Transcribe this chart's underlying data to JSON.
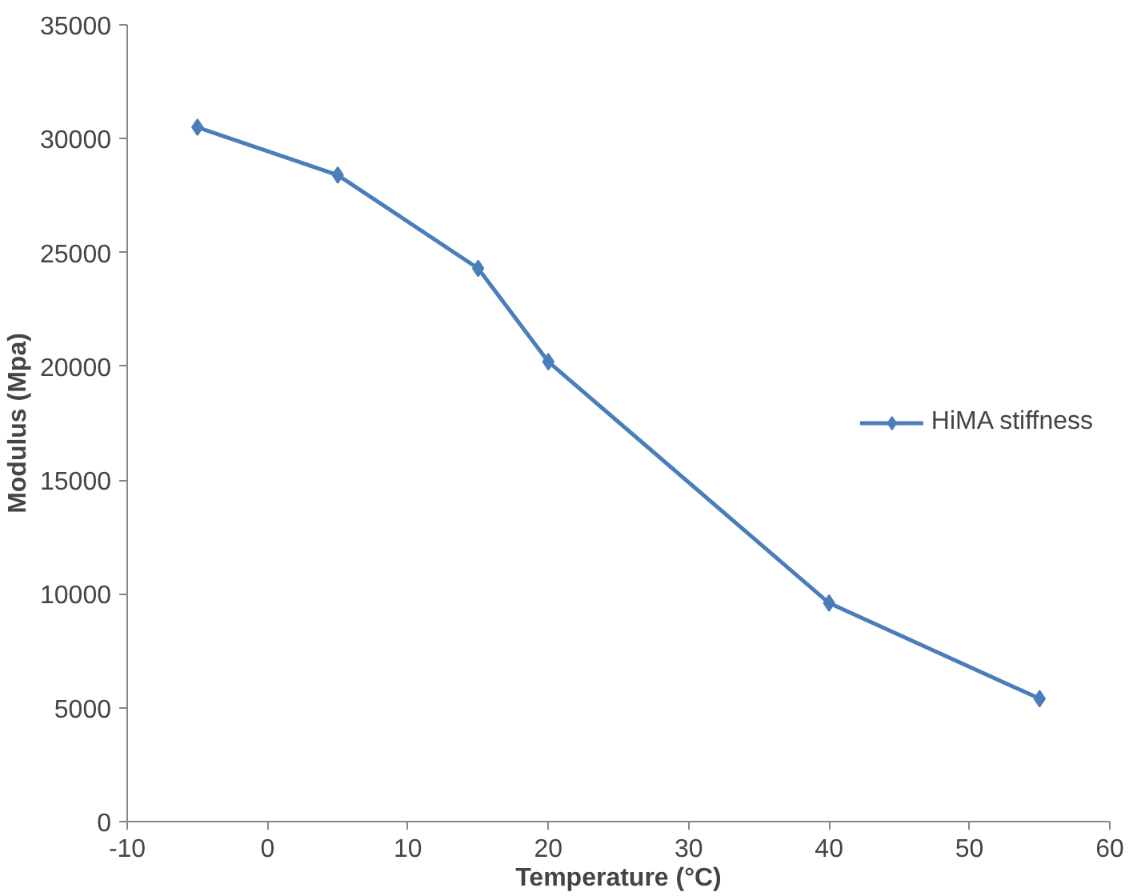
{
  "chart_data": {
    "type": "line",
    "xlabel": "Temperature (°C)",
    "ylabel": "Modulus (Mpa)",
    "x": [
      -5,
      5,
      15,
      20,
      40,
      55
    ],
    "series": [
      {
        "name": "HiMA stiffness",
        "color": "#4a7ebb",
        "values": [
          30500,
          28400,
          24300,
          20200,
          9600,
          5400
        ]
      }
    ],
    "xlim": [
      -10,
      60
    ],
    "xticks": [
      -10,
      0,
      10,
      20,
      30,
      40,
      50,
      60
    ],
    "ylim": [
      0,
      35000
    ],
    "yticks": [
      0,
      5000,
      10000,
      15000,
      20000,
      25000,
      30000,
      35000
    ],
    "grid": false,
    "legend": "right",
    "marker": "diamond",
    "line_style": "solid"
  }
}
